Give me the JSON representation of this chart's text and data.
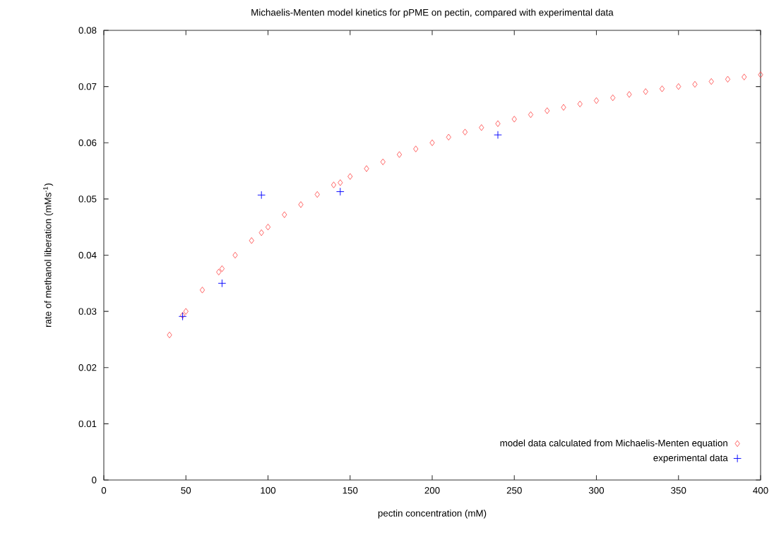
{
  "chart_data": {
    "type": "scatter",
    "title": "Michaelis-Menten model kinetics for pPME on pectin, compared with experimental data",
    "xlabel": "pectin concentration (mM)",
    "ylabel": "rate of methanol liberation (mMs$^{-1}$)",
    "xlim": [
      0,
      400
    ],
    "ylim": [
      0,
      0.08
    ],
    "xticks": [
      0,
      50,
      100,
      150,
      200,
      250,
      300,
      350,
      400
    ],
    "yticks": [
      0,
      0.01,
      0.02,
      0.03,
      0.04,
      0.05,
      0.06,
      0.07,
      0.08
    ],
    "grid": false,
    "legend": "bottom right",
    "series": [
      {
        "name": "model data calculated from Michaelis-Menten equation",
        "color": "#ff4040",
        "marker": "diamond",
        "x": [
          40,
          48,
          50,
          60,
          70,
          72,
          80,
          90,
          96,
          100,
          110,
          120,
          130,
          140,
          144,
          150,
          160,
          170,
          180,
          190,
          200,
          210,
          220,
          230,
          240,
          250,
          260,
          270,
          280,
          290,
          300,
          310,
          320,
          330,
          340,
          350,
          360,
          370,
          380,
          390,
          400
        ],
        "values": [
          0.0258,
          0.0293,
          0.03,
          0.0338,
          0.037,
          0.0376,
          0.04,
          0.0426,
          0.044,
          0.045,
          0.0472,
          0.049,
          0.0508,
          0.0525,
          0.0529,
          0.054,
          0.0554,
          0.0566,
          0.0579,
          0.0589,
          0.06,
          0.061,
          0.0619,
          0.0627,
          0.0634,
          0.0642,
          0.065,
          0.0657,
          0.0663,
          0.0669,
          0.0675,
          0.068,
          0.0686,
          0.0691,
          0.0696,
          0.07,
          0.0704,
          0.0709,
          0.0713,
          0.0717,
          0.0721
        ]
      },
      {
        "name": "experimental data",
        "color": "#0000ff",
        "marker": "cross",
        "x": [
          48,
          72,
          96,
          144,
          240
        ],
        "values": [
          0.0291,
          0.035,
          0.0507,
          0.0513,
          0.0614
        ]
      }
    ]
  }
}
